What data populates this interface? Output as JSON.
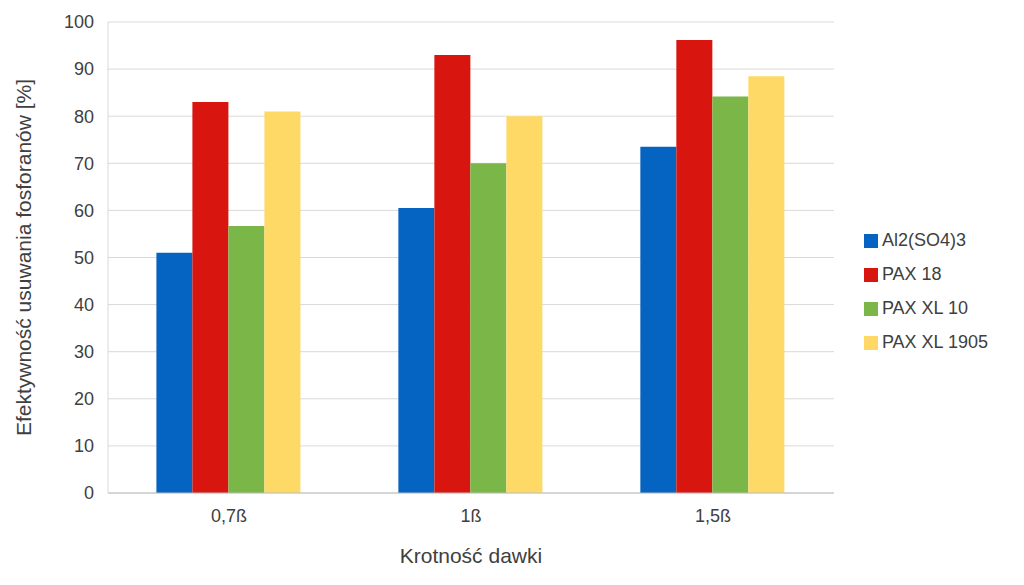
{
  "chart_data": {
    "type": "bar",
    "x_label": "Krotność dawki",
    "y_label": "Efektywność usuwania fosforanów [%]",
    "categories": [
      "0,7ß",
      "1ß",
      "1,5ß"
    ],
    "series": [
      {
        "name": "Al2(SO4)3",
        "color": "#0563c1",
        "values": [
          51,
          60.5,
          73.5
        ]
      },
      {
        "name": "PAX 18",
        "color": "#d9150f",
        "values": [
          83,
          93,
          96.2
        ]
      },
      {
        "name": "PAX XL 10",
        "color": "#7ab648",
        "values": [
          56.7,
          70,
          84.2
        ]
      },
      {
        "name": "PAX XL 1905",
        "color": "#ffd966",
        "values": [
          81,
          80,
          88.5
        ]
      }
    ],
    "ylim": [
      0,
      100
    ],
    "yticks": [
      0,
      10,
      20,
      30,
      40,
      50,
      60,
      70,
      80,
      90,
      100
    ],
    "grid": true,
    "legend": "right"
  }
}
